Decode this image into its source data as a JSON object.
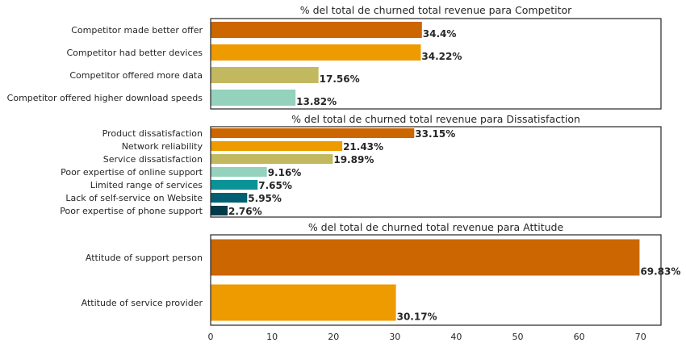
{
  "colors": [
    "#cc6600",
    "#ee9b00",
    "#c2b860",
    "#94d2bd",
    "#0a9396",
    "#005f73",
    "#003b4a"
  ],
  "chart_data": [
    {
      "type": "bar",
      "orientation": "horizontal",
      "title": "% del total de churned total revenue para Competitor",
      "xlim": [
        0,
        73.32
      ],
      "categories": [
        "Competitor made better offer",
        "Competitor had better devices",
        "Competitor offered more data",
        "Competitor offered higher download speeds"
      ],
      "values": [
        34.4,
        34.22,
        17.56,
        13.82
      ],
      "labels": [
        "34.4%",
        "34.22%",
        "17.56%",
        "13.82%"
      ]
    },
    {
      "type": "bar",
      "orientation": "horizontal",
      "title": "% del total de churned total revenue para Dissatisfaction",
      "xlim": [
        0,
        73.32
      ],
      "categories": [
        "Product dissatisfaction",
        "Network reliability",
        "Service dissatisfaction",
        "Poor expertise of online support",
        "Limited range of services",
        "Lack of self-service on Website",
        "Poor expertise of phone support"
      ],
      "values": [
        33.15,
        21.43,
        19.89,
        9.16,
        7.65,
        5.95,
        2.76
      ],
      "labels": [
        "33.15%",
        "21.43%",
        "19.89%",
        "9.16%",
        "7.65%",
        "5.95%",
        "2.76%"
      ]
    },
    {
      "type": "bar",
      "orientation": "horizontal",
      "title": "% del total de churned total revenue para Attitude",
      "xlim": [
        0,
        73.32
      ],
      "categories": [
        "Attitude of support person",
        "Attitude of service provider"
      ],
      "values": [
        69.83,
        30.17
      ],
      "labels": [
        "69.83%",
        "30.17%"
      ],
      "xticks": [
        "0",
        "10",
        "20",
        "30",
        "40",
        "50",
        "60",
        "70"
      ]
    }
  ]
}
